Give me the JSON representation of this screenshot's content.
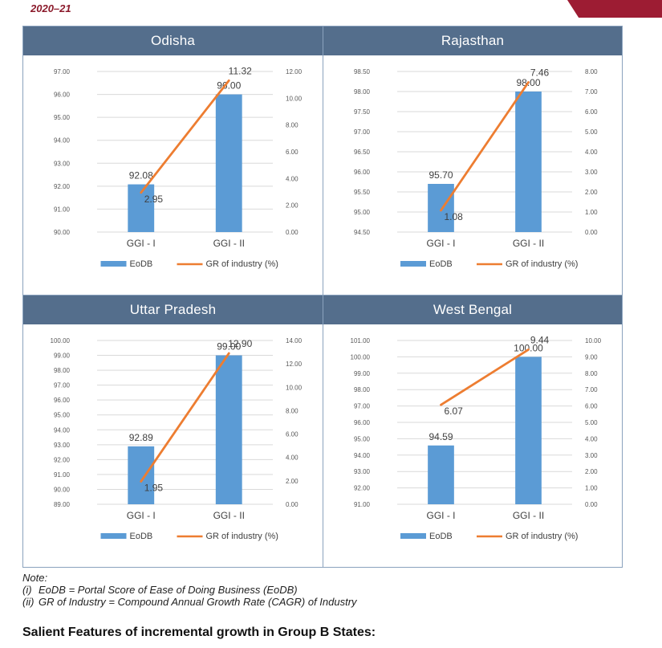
{
  "header": {
    "year": "2020–21",
    "accent_color": "#9d1c33"
  },
  "colors": {
    "bar": "#5b9bd5",
    "line": "#ed7d31",
    "title_bg": "#546e8c"
  },
  "chart_data": [
    {
      "type": "bar",
      "title": "Odisha",
      "categories": [
        "GGI - I",
        "GGI - II"
      ],
      "series": [
        {
          "name": "EoDB",
          "kind": "bar",
          "axis": "left",
          "values": [
            92.08,
            96.0
          ],
          "labels": [
            "92.08",
            "96.00"
          ]
        },
        {
          "name": "GR of industry (%)",
          "kind": "line",
          "axis": "right",
          "values": [
            2.95,
            11.32
          ],
          "labels": [
            "2.95",
            "11.32"
          ]
        }
      ],
      "left_axis": {
        "min": 90,
        "max": 97,
        "ticks": [
          "90.00",
          "91.00",
          "92.00",
          "93.00",
          "94.00",
          "95.00",
          "96.00",
          "97.00"
        ]
      },
      "right_axis": {
        "min": 0,
        "max": 12,
        "ticks": [
          "0.00",
          "2.00",
          "4.00",
          "6.00",
          "8.00",
          "10.00",
          "12.00"
        ]
      },
      "legend": [
        "EoDB",
        "GR of industry (%)"
      ]
    },
    {
      "type": "bar",
      "title": "Rajasthan",
      "categories": [
        "GGI - I",
        "GGI - II"
      ],
      "series": [
        {
          "name": "EoDB",
          "kind": "bar",
          "axis": "left",
          "values": [
            95.7,
            98.0
          ],
          "labels": [
            "95.70",
            "98.00"
          ]
        },
        {
          "name": "GR of industry (%)",
          "kind": "line",
          "axis": "right",
          "values": [
            1.08,
            7.46
          ],
          "labels": [
            "1.08",
            "7.46"
          ]
        }
      ],
      "left_axis": {
        "min": 94.5,
        "max": 98.5,
        "ticks": [
          "94.50",
          "95.00",
          "95.50",
          "96.00",
          "96.50",
          "97.00",
          "97.50",
          "98.00",
          "98.50"
        ]
      },
      "right_axis": {
        "min": 0,
        "max": 8,
        "ticks": [
          "0.00",
          "1.00",
          "2.00",
          "3.00",
          "4.00",
          "5.00",
          "6.00",
          "7.00",
          "8.00"
        ]
      },
      "legend": [
        "EoDB",
        "GR of industry (%)"
      ]
    },
    {
      "type": "bar",
      "title": "Uttar Pradesh",
      "categories": [
        "GGI - I",
        "GGI - II"
      ],
      "series": [
        {
          "name": "EoDB",
          "kind": "bar",
          "axis": "left",
          "values": [
            92.89,
            99.0
          ],
          "labels": [
            "92.89",
            "99.00"
          ]
        },
        {
          "name": "GR of industry (%)",
          "kind": "line",
          "axis": "right",
          "values": [
            1.95,
            12.9
          ],
          "labels": [
            "1.95",
            "12.90"
          ]
        }
      ],
      "left_axis": {
        "min": 89,
        "max": 100,
        "ticks": [
          "89.00",
          "90.00",
          "91.00",
          "92.00",
          "93.00",
          "94.00",
          "95.00",
          "96.00",
          "97.00",
          "98.00",
          "99.00",
          "100.00"
        ]
      },
      "right_axis": {
        "min": 0,
        "max": 14,
        "ticks": [
          "0.00",
          "2.00",
          "4.00",
          "6.00",
          "8.00",
          "10.00",
          "12.00",
          "14.00"
        ]
      },
      "legend": [
        "EoDB",
        "GR of industry (%)"
      ]
    },
    {
      "type": "bar",
      "title": "West Bengal",
      "categories": [
        "GGI - I",
        "GGI - II"
      ],
      "series": [
        {
          "name": "EoDB",
          "kind": "bar",
          "axis": "left",
          "values": [
            94.59,
            100.0
          ],
          "labels": [
            "94.59",
            "100.00"
          ]
        },
        {
          "name": "GR of industry (%)",
          "kind": "line",
          "axis": "right",
          "values": [
            6.07,
            9.44
          ],
          "labels": [
            "6.07",
            "9.44"
          ]
        }
      ],
      "left_axis": {
        "min": 91,
        "max": 101,
        "ticks": [
          "91.00",
          "92.00",
          "93.00",
          "94.00",
          "95.00",
          "96.00",
          "97.00",
          "98.00",
          "99.00",
          "100.00",
          "101.00"
        ]
      },
      "right_axis": {
        "min": 0,
        "max": 10,
        "ticks": [
          "0.00",
          "1.00",
          "2.00",
          "3.00",
          "4.00",
          "5.00",
          "6.00",
          "7.00",
          "8.00",
          "9.00",
          "10.00"
        ]
      },
      "legend": [
        "EoDB",
        "GR of industry (%)"
      ]
    }
  ],
  "note": {
    "heading": "Note:",
    "items": [
      {
        "num": "(i)",
        "text": "EoDB = Portal Score of Ease of Doing Business (EoDB)"
      },
      {
        "num": "(ii)",
        "text": "GR of Industry = Compound Annual Growth Rate (CAGR) of Industry"
      }
    ]
  },
  "section_heading": "Salient Features of incremental growth in Group B States:"
}
